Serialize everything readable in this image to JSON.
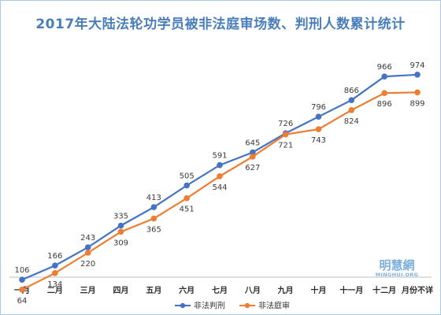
{
  "chart_data": {
    "type": "line",
    "title": "2017年大陆法轮功学员被非法庭审场数、判刑人数累计统计",
    "categories": [
      "一月",
      "二月",
      "三月",
      "四月",
      "五月",
      "六月",
      "七月",
      "八月",
      "九月",
      "十月",
      "十一月",
      "十二月",
      "月份不详"
    ],
    "series": [
      {
        "name": "非法判刑",
        "color": "#4472c4",
        "values": [
          106,
          166,
          243,
          335,
          413,
          505,
          591,
          645,
          726,
          796,
          866,
          966,
          974
        ]
      },
      {
        "name": "非法庭审",
        "color": "#ed7d31",
        "values": [
          64,
          134,
          220,
          309,
          365,
          451,
          544,
          627,
          721,
          743,
          824,
          896,
          899
        ]
      }
    ],
    "ylim": [
      0,
      1000
    ],
    "grid": false,
    "legend_position": "bottom"
  },
  "watermark": {
    "main": "明慧網",
    "sub": "MINGHUI.ORG"
  }
}
